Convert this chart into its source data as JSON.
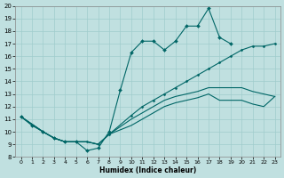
{
  "xlabel": "Humidex (Indice chaleur)",
  "bg_color": "#c0e0e0",
  "line_color": "#006666",
  "grid_color": "#a0cccc",
  "xlim": [
    -0.5,
    23.5
  ],
  "ylim": [
    8,
    20
  ],
  "xticks": [
    0,
    1,
    2,
    3,
    4,
    5,
    6,
    7,
    8,
    9,
    10,
    11,
    12,
    13,
    14,
    15,
    16,
    17,
    18,
    19,
    20,
    21,
    22,
    23
  ],
  "yticks": [
    8,
    9,
    10,
    11,
    12,
    13,
    14,
    15,
    16,
    17,
    18,
    19,
    20
  ],
  "line1": [
    [
      0,
      11.2
    ],
    [
      1,
      10.5
    ],
    [
      2,
      10.0
    ],
    [
      3,
      9.5
    ],
    [
      4,
      9.2
    ],
    [
      5,
      9.2
    ],
    [
      6,
      8.5
    ],
    [
      7,
      8.7
    ],
    [
      8,
      10.0
    ],
    [
      9,
      13.3
    ],
    [
      10,
      16.3
    ],
    [
      11,
      17.2
    ],
    [
      12,
      17.2
    ],
    [
      13,
      16.5
    ],
    [
      14,
      17.2
    ],
    [
      15,
      18.4
    ],
    [
      16,
      18.4
    ],
    [
      17,
      19.8
    ],
    [
      18,
      17.5
    ],
    [
      19,
      17.0
    ]
  ],
  "line2": [
    [
      0,
      11.2
    ],
    [
      2,
      10.0
    ],
    [
      3,
      9.5
    ],
    [
      4,
      9.2
    ],
    [
      5,
      9.2
    ],
    [
      6,
      9.2
    ],
    [
      7,
      9.0
    ],
    [
      8,
      10.0
    ],
    [
      9,
      13.3
    ],
    [
      10,
      16.3
    ],
    [
      11,
      17.2
    ],
    [
      12,
      17.2
    ],
    [
      13,
      16.5
    ],
    [
      14,
      17.2
    ],
    [
      15,
      18.4
    ],
    [
      16,
      18.4
    ],
    [
      17,
      17.0
    ]
  ],
  "line3": [
    [
      0,
      11.2
    ],
    [
      2,
      10.0
    ],
    [
      3,
      9.5
    ],
    [
      4,
      9.2
    ],
    [
      5,
      9.2
    ],
    [
      6,
      9.2
    ],
    [
      7,
      9.0
    ],
    [
      8,
      9.8
    ],
    [
      10,
      11.3
    ],
    [
      11,
      12.0
    ],
    [
      12,
      12.5
    ],
    [
      13,
      13.0
    ],
    [
      14,
      13.5
    ],
    [
      15,
      14.0
    ],
    [
      16,
      14.5
    ],
    [
      17,
      15.0
    ],
    [
      18,
      15.5
    ],
    [
      19,
      16.0
    ],
    [
      20,
      16.5
    ],
    [
      21,
      16.8
    ],
    [
      22,
      16.8
    ],
    [
      23,
      17.0
    ]
  ],
  "line4": [
    [
      0,
      11.2
    ],
    [
      2,
      10.0
    ],
    [
      3,
      9.5
    ],
    [
      4,
      9.2
    ],
    [
      5,
      9.2
    ],
    [
      6,
      9.2
    ],
    [
      7,
      9.0
    ],
    [
      8,
      9.8
    ],
    [
      10,
      11.0
    ],
    [
      11,
      11.5
    ],
    [
      12,
      12.0
    ],
    [
      13,
      12.5
    ],
    [
      14,
      12.8
    ],
    [
      15,
      13.0
    ],
    [
      16,
      13.2
    ],
    [
      17,
      13.5
    ],
    [
      18,
      13.5
    ],
    [
      19,
      13.5
    ],
    [
      20,
      13.5
    ],
    [
      21,
      13.2
    ],
    [
      22,
      13.0
    ],
    [
      23,
      12.8
    ]
  ],
  "line5": [
    [
      0,
      11.2
    ],
    [
      2,
      10.0
    ],
    [
      3,
      9.5
    ],
    [
      4,
      9.2
    ],
    [
      5,
      9.2
    ],
    [
      6,
      9.2
    ],
    [
      7,
      9.0
    ],
    [
      8,
      9.8
    ],
    [
      10,
      10.5
    ],
    [
      11,
      11.0
    ],
    [
      12,
      11.5
    ],
    [
      13,
      12.0
    ],
    [
      14,
      12.3
    ],
    [
      15,
      12.5
    ],
    [
      16,
      12.7
    ],
    [
      17,
      13.0
    ],
    [
      18,
      12.5
    ],
    [
      19,
      12.5
    ],
    [
      20,
      12.5
    ],
    [
      21,
      12.2
    ],
    [
      22,
      12.0
    ],
    [
      23,
      12.8
    ]
  ]
}
